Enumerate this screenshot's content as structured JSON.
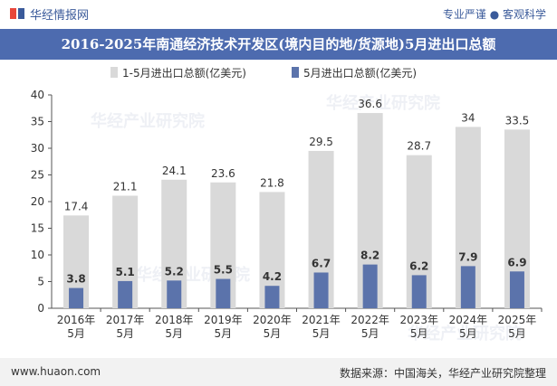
{
  "header": {
    "brand": "华经情报网",
    "tagline": "专业严谨 ● 客观科学"
  },
  "title": "2016-2025年南通经济技术开发区(境内目的地/货源地)5月进出口总额",
  "watermark": "华经产业研究院",
  "footer": {
    "left": "www.huaon.com",
    "right": "数据来源：中国海关，华经产业研究院整理"
  },
  "colors": {
    "title_bg": "#4d6baf",
    "series1": "#d9d9d9",
    "series2": "#5b73ab",
    "footer_bg": "#f2f2f2"
  },
  "chart_data": {
    "type": "bar",
    "categories": [
      "2016年\n5月",
      "2017年\n5月",
      "2018年\n5月",
      "2019年\n5月",
      "2020年\n5月",
      "2021年\n5月",
      "2022年\n5月",
      "2023年\n5月",
      "2024年\n5月",
      "2025年\n5月"
    ],
    "series": [
      {
        "name": "1-5月进出口总额(亿美元)",
        "values": [
          17.4,
          21.1,
          24.1,
          23.6,
          21.8,
          29.5,
          36.6,
          28.7,
          34,
          33.5
        ]
      },
      {
        "name": "5月进出口总额(亿美元)",
        "values": [
          3.8,
          5.1,
          5.2,
          5.5,
          4.2,
          6.7,
          8.2,
          6.2,
          7.9,
          6.9
        ]
      }
    ],
    "ylim": [
      0,
      40
    ],
    "yticks": [
      0,
      5,
      10,
      15,
      20,
      25,
      30,
      35,
      40
    ],
    "legend_position": "top",
    "grid": false
  }
}
